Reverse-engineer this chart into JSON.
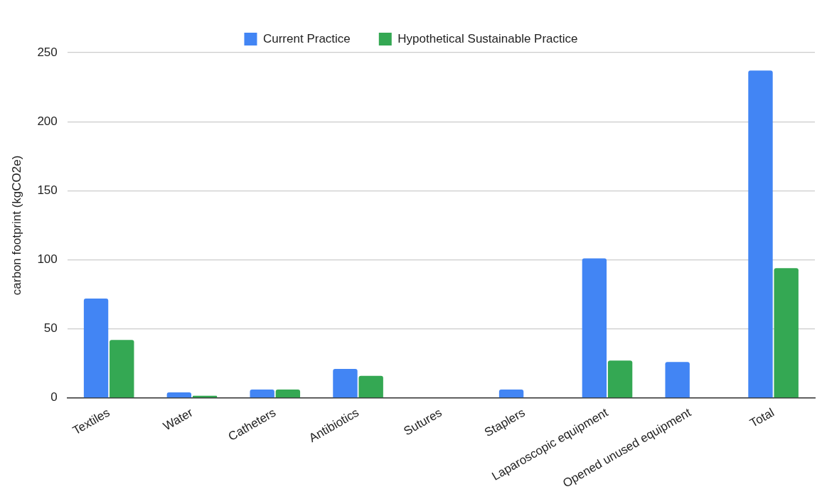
{
  "chart_data": {
    "type": "bar",
    "ylabel": "carbon footprint (kgCO2e)",
    "categories": [
      "Textiles",
      "Water",
      "Catheters",
      "Antibiotics",
      "Sutures",
      "Staplers",
      "Laparoscopic equipment",
      "Opened unused equipment",
      "Total"
    ],
    "series": [
      {
        "name": "Current Practice",
        "color": "#4285f4",
        "values": [
          72,
          4,
          6,
          21,
          null,
          6,
          101,
          26,
          237
        ]
      },
      {
        "name": "Hypothetical Sustainable Practice",
        "color": "#34a853",
        "values": [
          42,
          1.5,
          6,
          16,
          null,
          null,
          27,
          null,
          94
        ]
      }
    ],
    "ylim": [
      0,
      250
    ],
    "yticks": [
      0,
      50,
      100,
      150,
      200,
      250
    ],
    "grid": "y",
    "legend": "top"
  }
}
